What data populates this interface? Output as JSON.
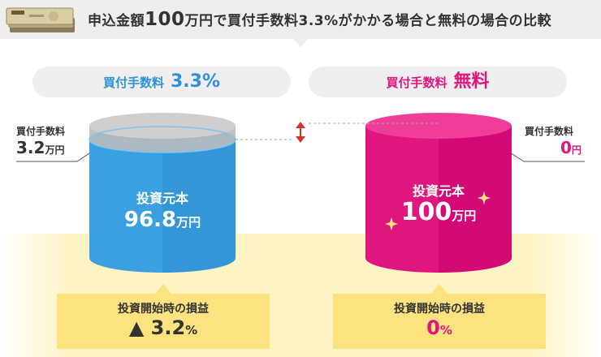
{
  "header": {
    "title_part1": "申込金額",
    "title_amount": "100",
    "title_part2": "万円で買付手数料3.3%がかかる場合と無料の場合の比較",
    "icon": "banknotes-icon"
  },
  "left": {
    "pill_label": "買付手数料",
    "pill_value": "3.3%",
    "fee_title": "買付手数料",
    "fee_value": "3.2",
    "fee_unit": "万円",
    "principal_label": "投資元本",
    "principal_value": "96.8",
    "principal_unit": "万円",
    "result_title": "投資開始時の損益",
    "result_value": "▲ 3.2",
    "result_unit": "%",
    "color": "#3ba0e0"
  },
  "right": {
    "pill_label": "買付手数料",
    "pill_value": "無料",
    "fee_title": "買付手数料",
    "fee_value": "0",
    "fee_unit": "円",
    "principal_label": "投資元本",
    "principal_value": "100",
    "principal_unit": "万円",
    "result_title": "投資開始時の損益",
    "result_value": "0",
    "result_unit": "%",
    "color": "#e0167f"
  },
  "colors": {
    "left_accent": "#2f91d6",
    "right_accent": "#e0167f",
    "highlight": "#fce380",
    "arrow": "#d6332b"
  }
}
